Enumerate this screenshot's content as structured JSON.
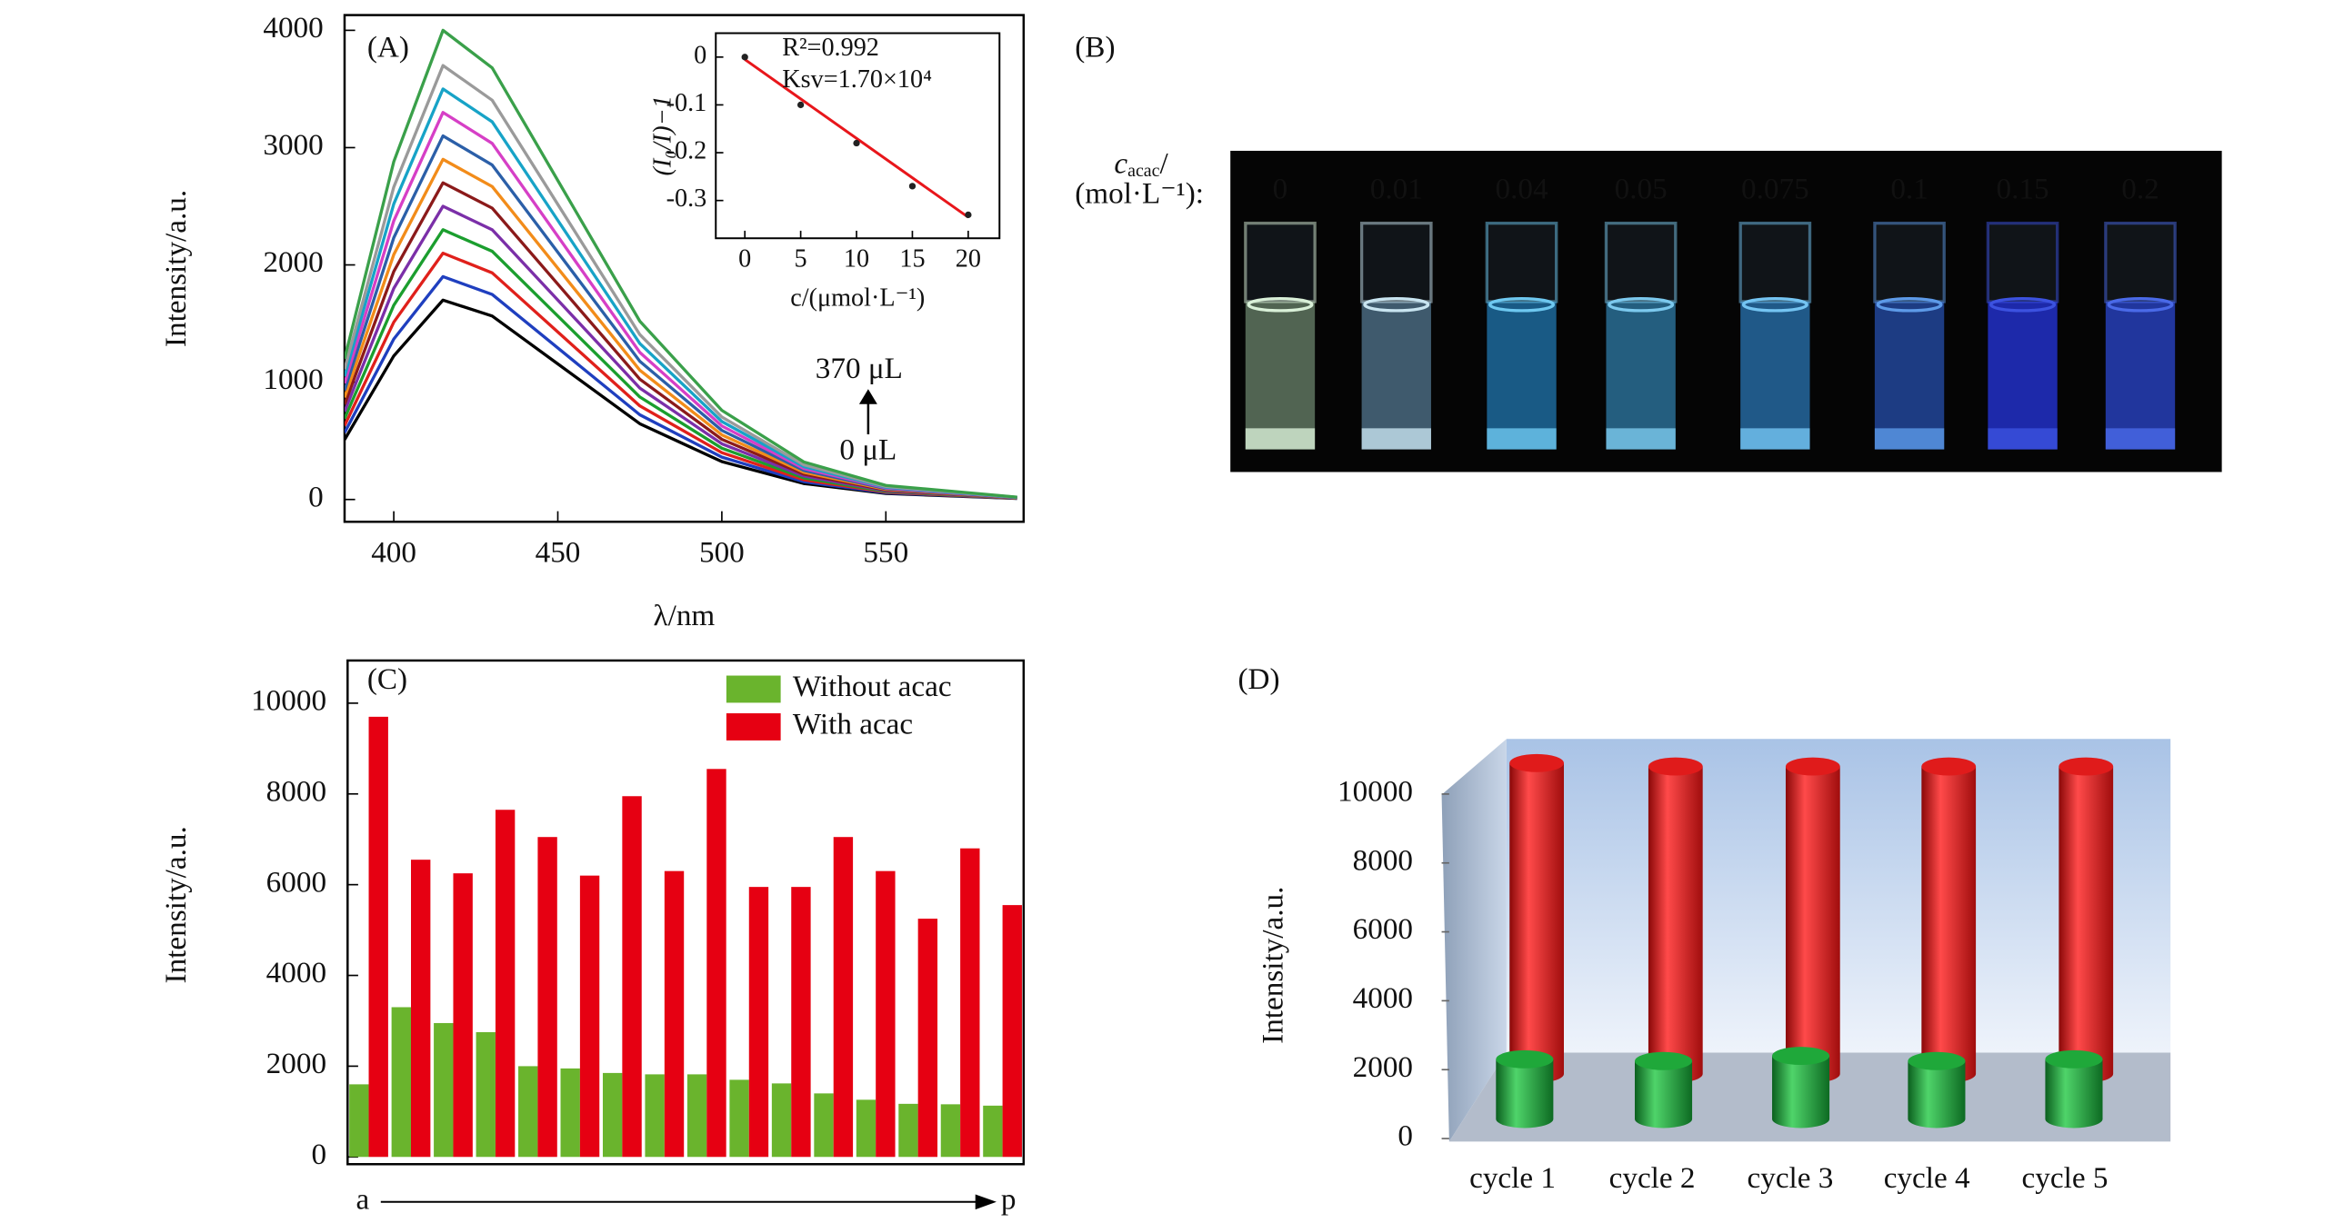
{
  "chart_data": [
    {
      "type": "line",
      "panel_label": "(A)",
      "ylabel": "Intensity/a.u.",
      "xlabel": "λ/nm",
      "annotations": [
        "370 μL",
        "0 μL"
      ],
      "xlim": [
        385,
        592
      ],
      "ylim": [
        -190,
        4130
      ],
      "xticks": [
        400,
        450,
        500,
        550
      ],
      "yticks": [
        0,
        1000,
        2000,
        3000,
        4000
      ],
      "x": [
        385,
        400,
        415,
        430,
        450,
        475,
        500,
        525,
        550,
        590
      ],
      "series": [
        {
          "color": "#000000",
          "values": [
            510,
            1224,
            1700,
            1564,
            1156,
            646,
            323,
            136,
            51,
            9
          ]
        },
        {
          "color": "#1f3fbf",
          "values": [
            570,
            1368,
            1900,
            1748,
            1292,
            722,
            361,
            152,
            57,
            10
          ]
        },
        {
          "color": "#e0201b",
          "values": [
            630,
            1512,
            2100,
            1932,
            1428,
            798,
            399,
            168,
            63,
            11
          ]
        },
        {
          "color": "#1b9e2e",
          "values": [
            690,
            1656,
            2300,
            2116,
            1564,
            874,
            437,
            184,
            69,
            12
          ]
        },
        {
          "color": "#7b2fa8",
          "values": [
            750,
            1800,
            2500,
            2300,
            1700,
            950,
            475,
            200,
            75,
            13
          ]
        },
        {
          "color": "#8b1a1a",
          "values": [
            810,
            1944,
            2700,
            2484,
            1836,
            1026,
            513,
            216,
            81,
            14
          ]
        },
        {
          "color": "#f28c1a",
          "values": [
            870,
            2088,
            2900,
            2668,
            1972,
            1102,
            551,
            232,
            87,
            15
          ]
        },
        {
          "color": "#2b5fa8",
          "values": [
            930,
            2232,
            3100,
            2852,
            2108,
            1178,
            589,
            248,
            93,
            16
          ]
        },
        {
          "color": "#d63fc6",
          "values": [
            990,
            2376,
            3300,
            3036,
            2244,
            1254,
            627,
            264,
            99,
            17
          ]
        },
        {
          "color": "#17a3c7",
          "values": [
            1050,
            2520,
            3500,
            3220,
            2380,
            1330,
            665,
            280,
            105,
            18
          ]
        },
        {
          "color": "#9a9a9a",
          "values": [
            1110,
            2664,
            3700,
            3404,
            2516,
            1406,
            703,
            296,
            111,
            19
          ]
        },
        {
          "color": "#3aa04a",
          "values": [
            1200,
            2880,
            4000,
            3680,
            2720,
            1520,
            760,
            320,
            120,
            20
          ]
        }
      ]
    },
    {
      "type": "scatter",
      "ylabel": "(I₀/I)−1",
      "xlabel": "c/(μmol·L⁻¹)",
      "annotations": [
        "R²=0.992",
        "Ksv=1.70×10⁴"
      ],
      "xlim": [
        -2.6,
        22.8
      ],
      "ylim": [
        -0.379,
        0.05
      ],
      "xticks": [
        0,
        5,
        10,
        15,
        20
      ],
      "yticks": [
        0,
        -0.1,
        -0.2,
        -0.3
      ],
      "x": [
        0,
        5,
        10,
        15,
        20
      ],
      "values": [
        0,
        -0.1,
        -0.18,
        -0.27,
        -0.33
      ],
      "color": "#222222",
      "fit": {
        "x": [
          0,
          20
        ],
        "values": [
          -0.005,
          -0.335
        ],
        "color": "#e8161b"
      }
    },
    {
      "type": "photo",
      "panel_label": "(B)",
      "label_symbol": "c",
      "label_subscript": "acac",
      "label_slash": "/",
      "label_unit": "(mol·L⁻¹):",
      "categories": [
        "0",
        "0.01",
        "0.04",
        "0.05",
        "0.075",
        "0.1",
        "0.15",
        "0.2"
      ]
    },
    {
      "type": "bar",
      "panel_label": "(C)",
      "ylabel": "Intensity/a.u.",
      "legend": "upper right",
      "ylim": [
        -160,
        10940
      ],
      "yticks": [
        0,
        2000,
        4000,
        6000,
        8000,
        10000
      ],
      "categories": [
        "a",
        null,
        null,
        null,
        null,
        null,
        null,
        null,
        null,
        null,
        null,
        null,
        null,
        null,
        null,
        "p"
      ],
      "series": [
        {
          "name": "Without acac",
          "color": "#6ab42d",
          "values": [
            1600,
            3300,
            2950,
            2750,
            2000,
            1950,
            1850,
            1820,
            1820,
            1700,
            1620,
            1400,
            1260,
            1170,
            1160,
            1130
          ]
        },
        {
          "name": "With acac",
          "color": "#e60012",
          "values": [
            9700,
            6550,
            6250,
            7650,
            7050,
            6200,
            7950,
            6300,
            8550,
            5950,
            5950,
            7050,
            6300,
            5250,
            6800,
            5550
          ]
        }
      ]
    },
    {
      "type": "cylinder",
      "panel_label": "(D)",
      "ylabel": "Intensity/a.u.",
      "ylim": [
        0,
        11600
      ],
      "yticks": [
        0,
        2000,
        4000,
        6000,
        8000,
        10000
      ],
      "categories": [
        "cycle 1",
        "cycle 2",
        "cycle 3",
        "cycle 4",
        "cycle 5"
      ],
      "series": [
        {
          "color": "#e01b1b",
          "values": [
            10900,
            10800,
            10800,
            10800,
            10800
          ]
        },
        {
          "color": "#1fa83a",
          "values": [
            2300,
            2250,
            2400,
            2250,
            2300
          ]
        }
      ]
    }
  ]
}
